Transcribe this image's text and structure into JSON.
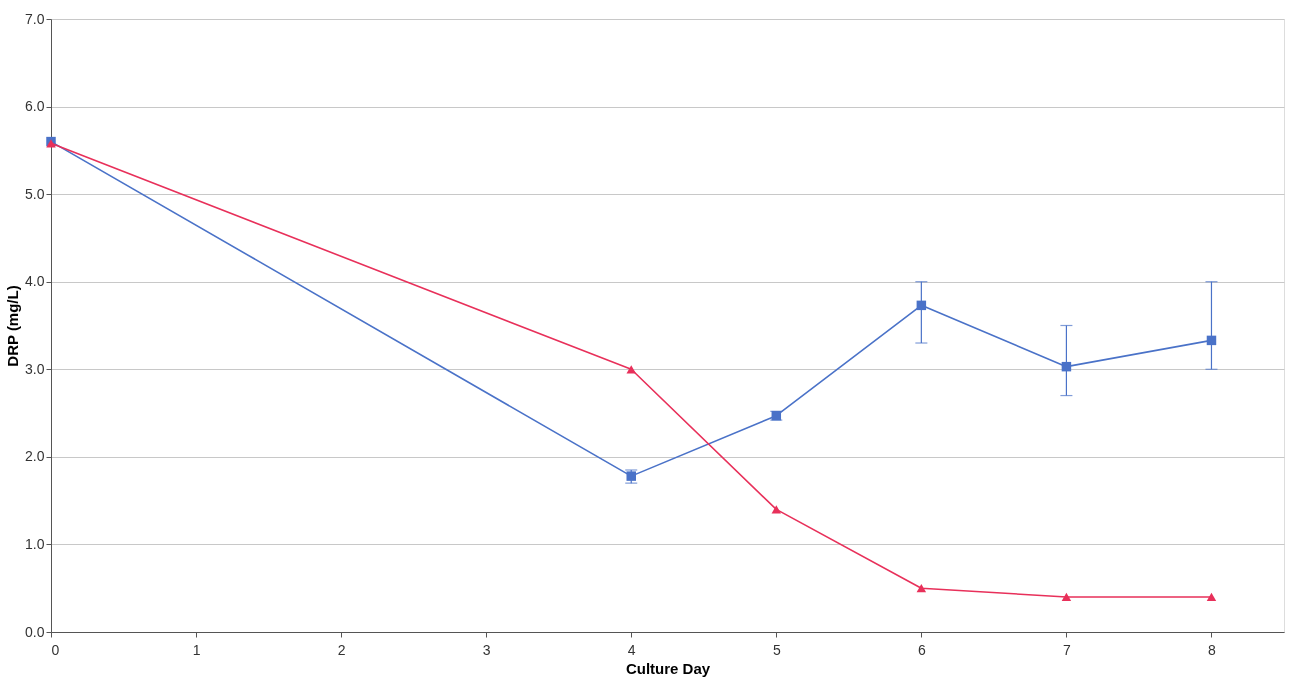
{
  "chart_data": {
    "type": "line",
    "xlabel": "Culture Day",
    "ylabel": "DRP (mg/L)",
    "x": [
      0,
      4,
      5,
      6,
      7,
      8
    ],
    "xlim": [
      0,
      8.5
    ],
    "xticks": [
      0,
      1,
      2,
      3,
      4,
      5,
      6,
      7,
      8
    ],
    "ylim": [
      0,
      7
    ],
    "yticks": [
      {
        "value": 0,
        "label": "0.0"
      },
      {
        "value": 1,
        "label": "1.0"
      },
      {
        "value": 2,
        "label": "2.0"
      },
      {
        "value": 3,
        "label": "3.0"
      },
      {
        "value": 4,
        "label": "4.0"
      },
      {
        "value": 5,
        "label": "5.0"
      },
      {
        "value": 6,
        "label": "6.0"
      },
      {
        "value": 7,
        "label": "7.0"
      }
    ],
    "grid": "y",
    "line_style": "solid",
    "series": [
      {
        "color": "#4a72c8",
        "marker": "square",
        "values": [
          5.6,
          1.78,
          2.47,
          3.73,
          3.03,
          3.33
        ],
        "errors": [
          null,
          [
            1.7,
            1.85
          ],
          [
            2.42,
            2.52
          ],
          [
            3.3,
            4.0
          ],
          [
            2.7,
            3.5
          ],
          [
            3.0,
            4.0
          ]
        ]
      },
      {
        "color": "#e8305a",
        "marker": "triangle",
        "values": [
          5.58,
          3.0,
          1.4,
          0.5,
          0.4,
          0.4
        ]
      }
    ]
  }
}
